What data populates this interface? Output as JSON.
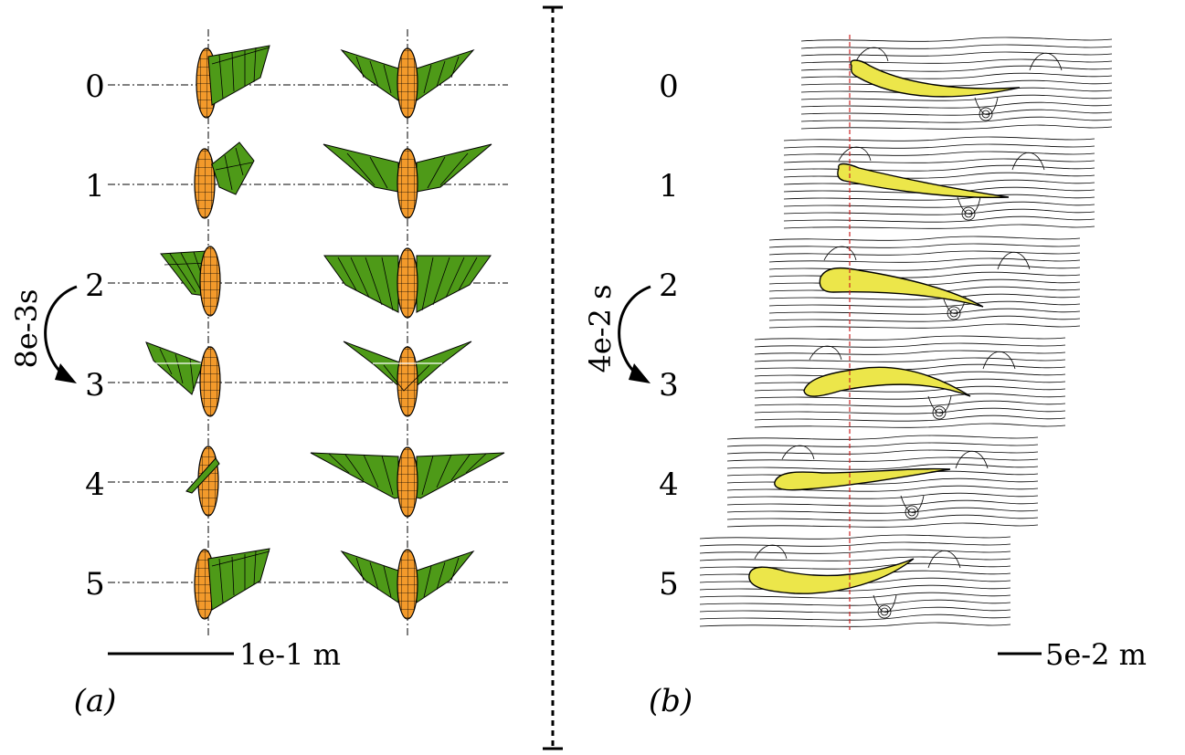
{
  "panel_a": {
    "label": "(a)",
    "frames": [
      "0",
      "1",
      "2",
      "3",
      "4",
      "5"
    ],
    "time_label": "8e-3s",
    "scale_label": "1e-1 m",
    "colors": {
      "body": "#f39a2b",
      "wing": "#4e9a18",
      "outline": "#000000"
    }
  },
  "panel_b": {
    "label": "(b)",
    "frames": [
      "0",
      "1",
      "2",
      "3",
      "4",
      "5"
    ],
    "time_label": "4e-2 s",
    "scale_label": "5e-2 m",
    "colors": {
      "wing": "#ece64a",
      "streamline": "#000000",
      "reference_line": "#cc2222"
    }
  }
}
